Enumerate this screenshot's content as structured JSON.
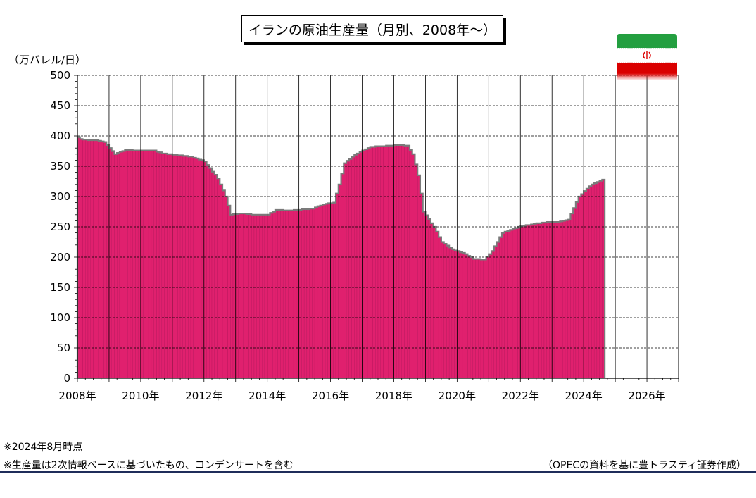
{
  "title": "イランの原油生産量（月別、2008年～）",
  "unit_label": "（万バレル/日）",
  "notes": [
    "※2024年8月時点",
    "※生産量は2次情報ベースに基づいたもの、コンデンサートを含む"
  ],
  "source": "（OPECの資料を基に豊トラスティ証券作成）",
  "flag_icon": "iran-flag-icon",
  "colors": {
    "bar": "#e0206e",
    "bar_edge": "#7a7a7a",
    "flag_green": "#239f40",
    "flag_red": "#da0000"
  },
  "chart_data": {
    "type": "bar",
    "title": "イランの原油生産量（月別、2008年～）",
    "ylabel": "（万バレル/日）",
    "xlabel": "",
    "ylim": [
      0,
      500
    ],
    "yticks": [
      0,
      50,
      100,
      150,
      200,
      250,
      300,
      350,
      400,
      450,
      500
    ],
    "x_start": "2008-01",
    "x_end": "2026-12",
    "xticks": [
      "2008年",
      "2010年",
      "2012年",
      "2014年",
      "2016年",
      "2018年",
      "2020年",
      "2022年",
      "2024年",
      "2026年"
    ],
    "grid": "dashed horizontal, solid vertical yearly",
    "series": [
      {
        "anchors": [
          [
            "2008-01",
            398
          ],
          [
            "2008-02",
            395
          ],
          [
            "2008-05",
            393
          ],
          [
            "2008-08",
            393
          ],
          [
            "2008-11",
            390
          ],
          [
            "2009-03",
            370
          ],
          [
            "2009-07",
            377
          ],
          [
            "2009-12",
            376
          ],
          [
            "2010-06",
            376
          ],
          [
            "2010-09",
            371
          ],
          [
            "2011-03",
            368
          ],
          [
            "2011-08",
            366
          ],
          [
            "2012-01",
            358
          ],
          [
            "2012-06",
            330
          ],
          [
            "2012-09",
            300
          ],
          [
            "2012-11",
            270
          ],
          [
            "2013-03",
            272
          ],
          [
            "2013-08",
            270
          ],
          [
            "2014-01",
            270
          ],
          [
            "2014-04",
            278
          ],
          [
            "2014-09",
            277
          ],
          [
            "2015-06",
            280
          ],
          [
            "2015-10",
            287
          ],
          [
            "2016-02",
            290
          ],
          [
            "2016-04",
            320
          ],
          [
            "2016-06",
            355
          ],
          [
            "2016-09",
            366
          ],
          [
            "2017-01",
            376
          ],
          [
            "2017-04",
            382
          ],
          [
            "2017-08",
            383
          ],
          [
            "2018-02",
            385
          ],
          [
            "2018-06",
            384
          ],
          [
            "2018-08",
            370
          ],
          [
            "2018-10",
            335
          ],
          [
            "2018-12",
            275
          ],
          [
            "2019-04",
            250
          ],
          [
            "2019-07",
            225
          ],
          [
            "2019-11",
            213
          ],
          [
            "2020-04",
            205
          ],
          [
            "2020-07",
            197
          ],
          [
            "2020-11",
            196
          ],
          [
            "2021-02",
            210
          ],
          [
            "2021-06",
            240
          ],
          [
            "2021-12",
            250
          ],
          [
            "2022-06",
            255
          ],
          [
            "2022-12",
            258
          ],
          [
            "2023-03",
            258
          ],
          [
            "2023-07",
            262
          ],
          [
            "2023-11",
            300
          ],
          [
            "2024-03",
            317
          ],
          [
            "2024-05",
            322
          ],
          [
            "2024-08",
            328
          ]
        ]
      }
    ]
  }
}
